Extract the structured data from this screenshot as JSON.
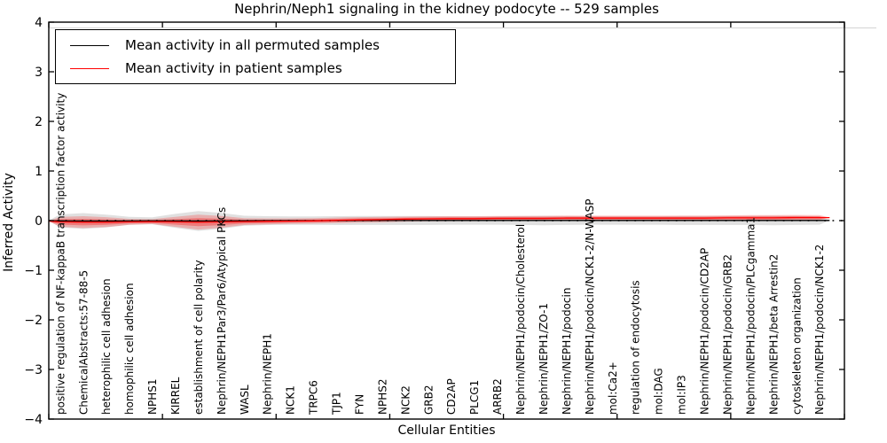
{
  "title": "Nephrin/Neph1 signaling in the kidney podocyte -- 529 samples",
  "legend": {
    "items": [
      {
        "label": "Mean activity in all permuted samples",
        "color": "#000000"
      },
      {
        "label": "Mean activity in patient samples",
        "color": "#ff0000"
      }
    ]
  },
  "chart_data": {
    "type": "line",
    "title": "Nephrin/Neph1 signaling in the kidney podocyte -- 529 samples",
    "xlabel": "Cellular Entities",
    "ylabel": "Inferred Activity",
    "ylim": [
      -4,
      4
    ],
    "yticks": [
      4,
      3,
      2,
      1,
      0,
      -1,
      -2,
      -3,
      -4
    ],
    "ytick_labels": [
      "4",
      "3",
      "2",
      "1",
      "0",
      "−1",
      "−2",
      "−3",
      "−4"
    ],
    "xlim": [
      0,
      35
    ],
    "xticks": [
      0,
      5,
      10,
      15,
      20,
      25,
      30,
      35
    ],
    "grid": false,
    "legend_position": "upper left",
    "zero_line": {
      "style": "dotted",
      "color": "#000000",
      "y": 0
    },
    "categories": [
      "positive regulation of NF-kappaB transcription factor activity",
      "ChemicalAbstracts:57-88-5",
      "heterophilic cell adhesion",
      "homophilic cell adhesion",
      "NPHS1",
      "KIRREL",
      "establishment of cell polarity",
      "Nephrin/NEPH1Par3/Par6/Atypical PKCs",
      "WASL",
      "Nephrin/NEPH1",
      "NCK1",
      "TRPC6",
      "TJP1",
      "FYN",
      "NPHS2",
      "NCK2",
      "GRB2",
      "CD2AP",
      "PLCG1",
      "ARRB2",
      "Nephrin/NEPH1/podocin/Cholesterol",
      "Nephrin/NEPH1/ZO-1",
      "Nephrin/NEPH1/podocin",
      "Nephrin/NEPH1/podocin/NCK1-2/N-WASP",
      "mol:Ca2+",
      "regulation of endocytosis",
      "mol:DAG",
      "mol:IP3",
      "Nephrin/NEPH1/podocin/CD2AP",
      "Nephrin/NEPH1/podocin/GRB2",
      "Nephrin/NEPH1/podocin/PLCgamma1",
      "Nephrin/NEPH1/beta Arrestin2",
      "cytoskeleton organization",
      "Nephrin/NEPH1/podocin/NCK1-2"
    ],
    "series": [
      {
        "name": "Mean activity in all permuted samples",
        "color": "#000000",
        "values": [
          0,
          -0.005,
          -0.008,
          -0.008,
          -0.005,
          -0.003,
          -0.005,
          -0.008,
          -0.005,
          -0.002,
          0,
          0,
          0,
          0,
          0.002,
          0.002,
          0.002,
          0.003,
          0.003,
          0.003,
          0.003,
          0.003,
          0.003,
          0.003,
          0.003,
          0.003,
          0.003,
          0.003,
          0.003,
          0.003,
          0.003,
          0.003,
          0.003,
          0.003,
          0.003,
          0.003
        ]
      },
      {
        "name": "Mean activity in patient samples",
        "color": "#ff0000",
        "values": [
          -0.01,
          -0.025,
          -0.03,
          -0.03,
          -0.025,
          -0.02,
          -0.025,
          -0.03,
          -0.025,
          -0.02,
          -0.015,
          -0.01,
          -0.005,
          0.005,
          0.015,
          0.02,
          0.03,
          0.035,
          0.04,
          0.04,
          0.045,
          0.045,
          0.045,
          0.05,
          0.05,
          0.05,
          0.05,
          0.05,
          0.05,
          0.05,
          0.055,
          0.055,
          0.055,
          0.06,
          0.06,
          0.06
        ]
      }
    ],
    "bands": [
      {
        "name": "permuted samples spread",
        "center_series": 0,
        "color": "rgba(0,0,0,0.12)",
        "halfwidths": [
          0.004,
          0.13,
          0.16,
          0.13,
          0.08,
          0.07,
          0.14,
          0.2,
          0.16,
          0.1,
          0.09,
          0.085,
          0.085,
          0.09,
          0.09,
          0.09,
          0.09,
          0.09,
          0.085,
          0.085,
          0.085,
          0.09,
          0.095,
          0.09,
          0.085,
          0.085,
          0.085,
          0.085,
          0.09,
          0.09,
          0.09,
          0.09,
          0.095,
          0.09,
          0.085,
          0.004
        ]
      },
      {
        "name": "patient samples spread",
        "center_series": 1,
        "color": "rgba(255,0,0,0.22)",
        "inner_color": "rgba(255,0,0,0.30)",
        "halfwidths": [
          0.004,
          0.1,
          0.12,
          0.1,
          0.06,
          0.05,
          0.1,
          0.15,
          0.12,
          0.07,
          0.06,
          0.055,
          0.055,
          0.055,
          0.055,
          0.055,
          0.05,
          0.05,
          0.05,
          0.05,
          0.05,
          0.05,
          0.05,
          0.05,
          0.05,
          0.05,
          0.05,
          0.05,
          0.05,
          0.05,
          0.05,
          0.055,
          0.055,
          0.055,
          0.05,
          0.004
        ]
      }
    ]
  },
  "colors": {
    "axis": "#000000",
    "faint_rule": "#d9d9d9",
    "background": "#ffffff"
  }
}
